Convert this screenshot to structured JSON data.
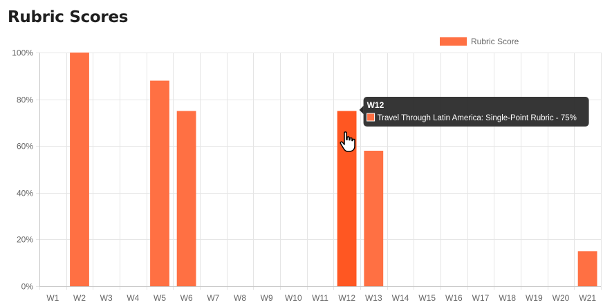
{
  "page": {
    "title": "Rubric Scores"
  },
  "chart_data": {
    "type": "bar",
    "categories": [
      "W1",
      "W2",
      "W3",
      "W4",
      "W5",
      "W6",
      "W7",
      "W8",
      "W9",
      "W10",
      "W11",
      "W12",
      "W13",
      "W14",
      "W15",
      "W16",
      "W17",
      "W18",
      "W19",
      "W20",
      "W21"
    ],
    "series": [
      {
        "name": "Rubric Score",
        "values": [
          0,
          100,
          0,
          0,
          88,
          75,
          0,
          0,
          0,
          0,
          0,
          75,
          58,
          0,
          0,
          0,
          0,
          0,
          0,
          0,
          15
        ]
      }
    ],
    "ylim": [
      0,
      100
    ],
    "yticks": [
      0,
      20,
      40,
      60,
      80,
      100
    ],
    "ytick_labels": [
      "0%",
      "20%",
      "40%",
      "60%",
      "80%",
      "100%"
    ],
    "grid": true,
    "legend_position": "top-right",
    "colors": {
      "bar": "#ff7043",
      "bar_hover": "#ff5722",
      "grid": "#e5e5e5",
      "tooltip_bg": "#2b2b2b"
    },
    "tooltip": {
      "category": "W12",
      "title": "W12",
      "body": "Travel Through Latin America: Single-Point Rubric - 75%"
    }
  }
}
